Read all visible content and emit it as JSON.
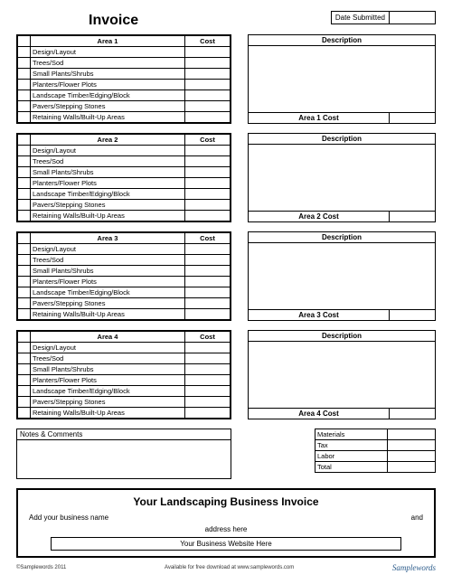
{
  "title": "Invoice",
  "date_label": "Date Submitted",
  "area_items": [
    "Design/Layout",
    "Trees/Sod",
    "Small Plants/Shrubs",
    "Planters/Flower Plots",
    "Landscape Timber/Edging/Block",
    "Pavers/Stepping Stones",
    "Retaining Walls/Built-Up Areas"
  ],
  "cost_header": "Cost",
  "desc_header": "Description",
  "areas": [
    {
      "name": "Area 1",
      "cost_label": "Area 1 Cost"
    },
    {
      "name": "Area 2",
      "cost_label": "Area 2 Cost"
    },
    {
      "name": "Area 3",
      "cost_label": "Area 3 Cost"
    },
    {
      "name": "Area 4",
      "cost_label": "Area 4 Cost"
    }
  ],
  "notes_label": "Notes & Comments",
  "totals": [
    "Materials",
    "Tax",
    "Labor",
    "Total"
  ],
  "footer": {
    "title": "Your Landscaping Business Invoice",
    "business_name": "Add your business name",
    "and": "and",
    "address": "address here",
    "website": "Your Business Website Here"
  },
  "credits": {
    "left": "©Samplewords 2011",
    "mid": "Available for free download at www.samplewords.com",
    "right": "Samplewords"
  }
}
